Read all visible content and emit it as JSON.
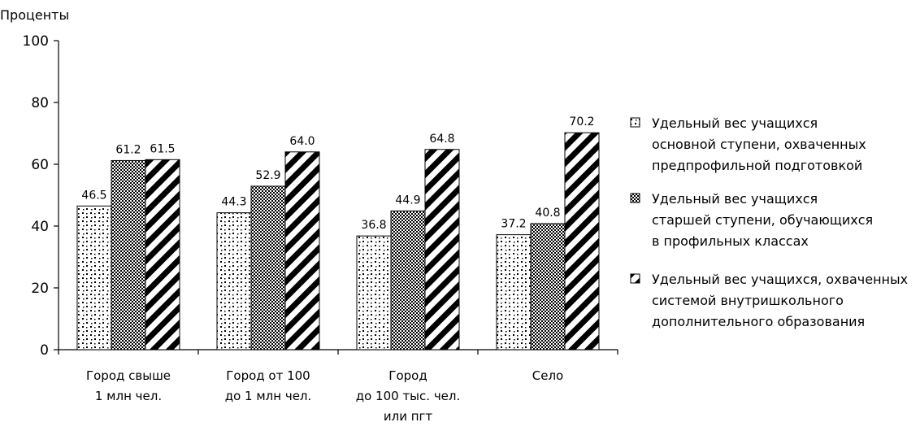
{
  "chart_data": {
    "type": "bar",
    "ylabel": "Проценты",
    "ylim": [
      0,
      100
    ],
    "yticks": [
      0,
      20,
      40,
      60,
      80,
      100
    ],
    "categories": [
      [
        "Город  свыше",
        "1 млн чел."
      ],
      [
        "Город от 100",
        "до 1 млн чел."
      ],
      [
        "Город",
        "до 100 тыс. чел.",
        "или пгт"
      ],
      [
        "Село"
      ]
    ],
    "series": [
      {
        "name": "Удельный вес учащихся основной ступени, охваченных предпрофильной подготовкой",
        "legend_lines": [
          "Удельный вес учащихся",
          "основной ступени, охваченных",
          "предпрофильной подготовкой"
        ],
        "pattern": "dots",
        "values": [
          46.5,
          44.3,
          36.8,
          37.2
        ]
      },
      {
        "name": "Удельный вес учащихся старшей ступени, обучающихся в профильных классах",
        "legend_lines": [
          "Удельный вес учащихся",
          "старшей ступени, обучающихся",
          "в профильных классах"
        ],
        "pattern": "checker",
        "values": [
          61.2,
          52.9,
          44.9,
          40.8
        ]
      },
      {
        "name": "Удельный вес учащихся, охваченных системой внутришкольного дополнительного образования",
        "legend_lines": [
          "Удельный вес учащихся, охваченных",
          "системой внутришкольного",
          "дополнительного образования"
        ],
        "pattern": "stripes",
        "values": [
          61.5,
          64.0,
          64.8,
          70.2
        ]
      }
    ],
    "value_labels": [
      [
        "46.5",
        "44.3",
        "36.8",
        "37.2"
      ],
      [
        "61.2",
        "52.9",
        "44.9",
        "40.8"
      ],
      [
        "61.5",
        "64.0",
        "64.8",
        "70.2"
      ]
    ],
    "grid": false,
    "legend_position": "right"
  }
}
